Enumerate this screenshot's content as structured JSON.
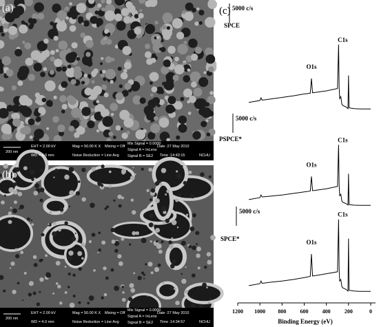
{
  "panels": [
    {
      "label": "(a)",
      "info": [
        "200 nm",
        "EHT = 2.00 kV",
        "WD = 4.0 mm",
        "Mag = 50.00 K X",
        "Noise Reduction = Line Avg",
        "Mixing = Off",
        "Mix Signal = 0.0000",
        "Signal A = InLens",
        "Signal B = SE2",
        "Date :27 May 2010",
        "Time :14:43:15",
        "NCHU"
      ]
    },
    {
      "label": "(b)",
      "info": [
        "200 nm",
        "EHT = 2.00 kV",
        "WD = 4.0 mm",
        "Mag = 50.00 K X",
        "Noise Reduction = Line Avg",
        "Mixing = Off",
        "Mix Signal = 0.0000",
        "Signal A = InLens",
        "Signal B = SE2",
        "Date :27 May 2010",
        "Time :14:34:57",
        "NCHU"
      ]
    }
  ],
  "chart_data": {
    "type": "line",
    "label": "(c)",
    "xlabel": "Binding Energy (eV)",
    "xlim": [
      1200,
      0
    ],
    "xticks": [
      1200,
      1000,
      800,
      600,
      400,
      200,
      0
    ],
    "x": [
      1100,
      1000,
      990,
      980,
      900,
      800,
      700,
      600,
      545,
      535,
      525,
      500,
      400,
      300,
      290,
      285,
      280,
      270,
      260,
      250,
      220,
      205,
      200,
      195,
      150,
      100,
      50,
      0
    ],
    "series": [
      {
        "name": "SPCE",
        "color": "#000000",
        "scale_label": "5000 c/s",
        "annotations": [
          "O1s",
          "C1s"
        ],
        "values": [
          2000,
          2500,
          3200,
          2600,
          2900,
          3300,
          3700,
          4200,
          4400,
          8200,
          4500,
          4600,
          5000,
          5600,
          17000,
          6000,
          3000,
          3500,
          1500,
          1200,
          800,
          400,
          9000,
          600,
          400,
          300,
          300,
          300
        ]
      },
      {
        "name": "PSPCE*",
        "color": "#000000",
        "scale_label": "5000 c/s",
        "annotations": [
          "O1s",
          "C1s"
        ],
        "values": [
          1800,
          2300,
          3000,
          2500,
          2700,
          3000,
          3400,
          3800,
          4000,
          7800,
          4100,
          4200,
          4600,
          5200,
          16000,
          5500,
          2800,
          3200,
          1400,
          1100,
          700,
          400,
          8500,
          500,
          350,
          300,
          300,
          300
        ]
      },
      {
        "name": "SPCE*",
        "color": "#000000",
        "scale_label": "5000 c/s",
        "annotations": [
          "O1s",
          "C1s"
        ],
        "values": [
          1800,
          2300,
          3000,
          2400,
          2700,
          3000,
          3400,
          3900,
          4200,
          10000,
          4300,
          4400,
          4900,
          5400,
          19000,
          6000,
          3000,
          3400,
          1500,
          1200,
          800,
          400,
          14000,
          600,
          400,
          300,
          300,
          300
        ]
      }
    ]
  }
}
